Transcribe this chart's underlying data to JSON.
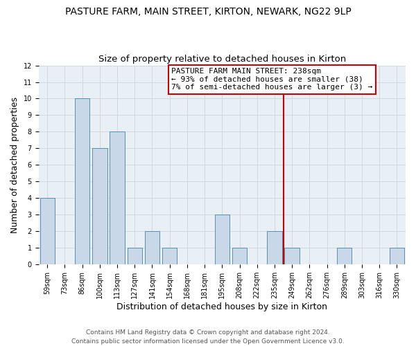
{
  "title": "PASTURE FARM, MAIN STREET, KIRTON, NEWARK, NG22 9LP",
  "subtitle": "Size of property relative to detached houses in Kirton",
  "xlabel": "Distribution of detached houses by size in Kirton",
  "ylabel": "Number of detached properties",
  "bar_labels": [
    "59sqm",
    "73sqm",
    "86sqm",
    "100sqm",
    "113sqm",
    "127sqm",
    "141sqm",
    "154sqm",
    "168sqm",
    "181sqm",
    "195sqm",
    "208sqm",
    "222sqm",
    "235sqm",
    "249sqm",
    "262sqm",
    "276sqm",
    "289sqm",
    "303sqm",
    "316sqm",
    "330sqm"
  ],
  "bar_values": [
    4,
    0,
    10,
    7,
    8,
    1,
    2,
    1,
    0,
    0,
    3,
    1,
    0,
    2,
    1,
    0,
    0,
    1,
    0,
    0,
    1
  ],
  "bar_color": "#c8d8e8",
  "bar_edge_color": "#5b8fa8",
  "ylim": [
    0,
    12
  ],
  "yticks": [
    0,
    1,
    2,
    3,
    4,
    5,
    6,
    7,
    8,
    9,
    10,
    11,
    12
  ],
  "vline_x_index": 13.5,
  "vline_color": "#cc0000",
  "annotation_line1": "PASTURE FARM MAIN STREET: 238sqm",
  "annotation_line2": "← 93% of detached houses are smaller (38)",
  "annotation_line3": "7% of semi-detached houses are larger (3) →",
  "footer_text": "Contains HM Land Registry data © Crown copyright and database right 2024.\nContains public sector information licensed under the Open Government Licence v3.0.",
  "background_color": "#ffffff",
  "grid_color": "#d0d8e0",
  "title_fontsize": 10,
  "subtitle_fontsize": 9.5,
  "axis_label_fontsize": 9,
  "tick_fontsize": 7,
  "annotation_fontsize": 8,
  "footer_fontsize": 6.5
}
